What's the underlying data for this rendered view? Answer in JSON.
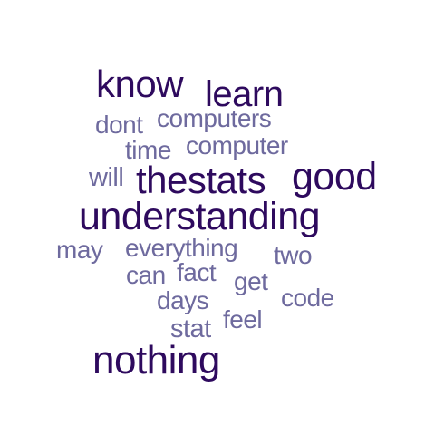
{
  "colors": {
    "dark": "#2e0a5e",
    "light": "#6e6a9e",
    "background": "#ffffff"
  },
  "words": {
    "know": "know",
    "learn": "learn",
    "dont": "dont",
    "computers": "computers",
    "time": "time",
    "computer": "computer",
    "will": "will",
    "thestats": "thestats",
    "good": "good",
    "understanding": "understanding",
    "may": "may",
    "everything": "everything",
    "two": "two",
    "can": "can",
    "fact": "fact",
    "get": "get",
    "days": "days",
    "code": "code",
    "stat": "stat",
    "feel": "feel",
    "nothing": "nothing"
  }
}
